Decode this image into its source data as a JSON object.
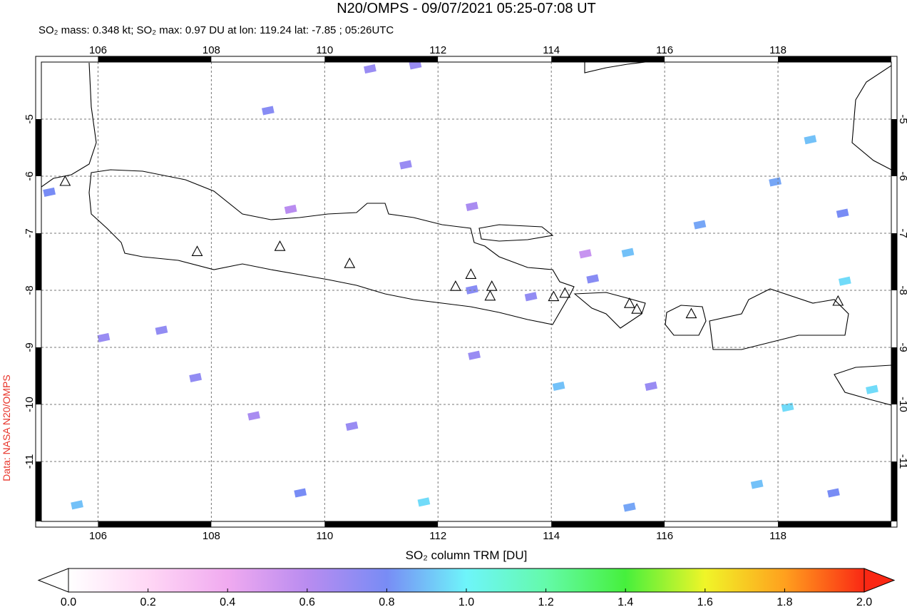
{
  "chart_data": {
    "type": "map",
    "title": "N20/OMPS - 09/07/2021 05:25-07:08 UT",
    "subtitle": "SO₂ mass: 0.348 kt; SO₂ max: 0.97 DU at lon: 119.24 lat: -7.85 ; 05:26UTC",
    "source": "Data: NASA N20/OMPS",
    "colorbar_label": "SO₂ column TRM [DU]",
    "xlim": [
      105,
      120
    ],
    "ylim": [
      -12.05,
      -4.0
    ],
    "xticks": [
      106,
      108,
      110,
      112,
      114,
      116,
      118
    ],
    "yticks": [
      -5,
      -6,
      -7,
      -8,
      -9,
      -10,
      -11
    ],
    "grid": true,
    "clim": [
      0,
      2
    ],
    "colorbar_ticks": [
      {
        "value": 0,
        "label": "0.0"
      },
      {
        "value": 0.2,
        "label": "0.2"
      },
      {
        "value": 0.4,
        "label": "0.4"
      },
      {
        "value": 0.6,
        "label": "0.6"
      },
      {
        "value": 0.8,
        "label": "0.8"
      },
      {
        "value": 1,
        "label": "1.0"
      },
      {
        "value": 1.2,
        "label": "1.2"
      },
      {
        "value": 1.4,
        "label": "1.4"
      },
      {
        "value": 1.6,
        "label": "1.6"
      },
      {
        "value": 1.8,
        "label": "1.8"
      },
      {
        "value": 2,
        "label": "2.0"
      }
    ],
    "pixels": {
      "lon": [
        110.8,
        111.6,
        109.0,
        105.14,
        111.43,
        112.6,
        109.4,
        115.35,
        116.62,
        117.95,
        118.57,
        119.14,
        119.18,
        112.6,
        113.64,
        114.73,
        107.12,
        106.1,
        107.72,
        112.64,
        114.13,
        118.17,
        119.66,
        108.75,
        111.75,
        105.63,
        109.57,
        115.38,
        117.63,
        118.98,
        115.76,
        110.48,
        114.6
      ],
      "lat": [
        -4.12,
        -4.05,
        -4.85,
        -6.28,
        -5.8,
        -6.53,
        -6.58,
        -7.34,
        -6.85,
        -6.1,
        -5.36,
        -6.65,
        -7.84,
        -7.99,
        -8.11,
        -7.8,
        -8.7,
        -8.83,
        -9.53,
        -9.14,
        -9.68,
        -10.05,
        -9.74,
        -10.2,
        -11.71,
        -11.76,
        -11.55,
        -11.8,
        -11.4,
        -11.55,
        -9.68,
        -10.38,
        -7.36
      ],
      "values": [
        0.7,
        0.7,
        0.75,
        0.8,
        0.7,
        0.65,
        0.6,
        0.9,
        0.85,
        0.85,
        0.9,
        0.8,
        0.95,
        0.75,
        0.72,
        0.75,
        0.72,
        0.7,
        0.72,
        0.7,
        0.9,
        0.95,
        0.95,
        0.65,
        0.95,
        0.9,
        0.8,
        0.85,
        0.9,
        0.8,
        0.7,
        0.7,
        0.55
      ]
    },
    "volcanoes": {
      "lon": [
        105.42,
        107.75,
        109.21,
        110.44,
        112.31,
        112.58,
        112.95,
        112.92,
        114.04,
        114.24,
        115.38,
        115.51,
        116.47,
        119.06
      ],
      "lat": [
        -6.1,
        -7.33,
        -7.24,
        -7.54,
        -7.94,
        -7.73,
        -7.94,
        -8.11,
        -8.12,
        -8.06,
        -8.24,
        -8.34,
        -8.42,
        -8.2
      ]
    }
  }
}
